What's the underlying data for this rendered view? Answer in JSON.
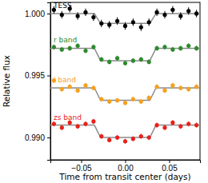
{
  "chart_data": {
    "type": "scatter",
    "x_label": "Time from transit center (days)",
    "y_label": "Relative flux",
    "xlim": [
      -0.085,
      0.085
    ],
    "ylim": [
      0.9882,
      1.0009
    ],
    "xticks": [
      {
        "value": -0.05,
        "label": "−0.05"
      },
      {
        "value": 0,
        "label": "0.00"
      },
      {
        "value": 0.05,
        "label": "0.05"
      }
    ],
    "yticks": [
      {
        "value": 0.99,
        "label": "0.990"
      },
      {
        "value": 0.995,
        "label": "0.995"
      },
      {
        "value": 1,
        "label": "1.000"
      }
    ],
    "x": [
      -0.081,
      -0.072,
      -0.063,
      -0.054,
      -0.045,
      -0.036,
      -0.027,
      -0.018,
      -0.009,
      0,
      0.009,
      0.018,
      0.027,
      0.036,
      0.045,
      0.054,
      0.063,
      0.072,
      0.081
    ],
    "model_x": [
      -0.085,
      -0.035,
      -0.028,
      0.028,
      0.035,
      0.085
    ],
    "series": [
      {
        "name": "TESS",
        "color": "#000000",
        "marker": "circle",
        "values": [
          1.0003,
          0.9999,
          1.0004,
          0.9998,
          1.0001,
          0.9997,
          0.9992,
          0.9991,
          0.9994,
          0.999,
          0.9993,
          0.9989,
          0.9993,
          1.0001,
          0.9999,
          1.0003,
          0.9998,
          1.0002,
          1.0
        ],
        "errors": [
          0.0003,
          0.0003,
          0.0003,
          0.0003,
          0.0003,
          0.0003,
          0.0003,
          0.0003,
          0.0003,
          0.0003,
          0.0003,
          0.0003,
          0.0003,
          0.0003,
          0.0003,
          0.0003,
          0.0003,
          0.0003,
          0.0003
        ],
        "model": [
          1.0,
          1.0,
          0.9992,
          0.9992,
          1.0,
          1.0
        ]
      },
      {
        "name": "r band",
        "color": "#2e8b2e",
        "marker": "circle",
        "values": [
          0.9973,
          0.9971,
          0.9972,
          0.9974,
          0.997,
          0.9973,
          0.9963,
          0.9961,
          0.9964,
          0.996,
          0.9962,
          0.9963,
          0.9961,
          0.9972,
          0.9973,
          0.9971,
          0.9972,
          0.9974,
          0.9972
        ],
        "errors": [
          0.0002,
          0.0002,
          0.0002,
          0.0002,
          0.0002,
          0.0002,
          0.0002,
          0.0002,
          0.0002,
          0.0002,
          0.0002,
          0.0002,
          0.0002,
          0.0002,
          0.0002,
          0.0002,
          0.0002,
          0.0002,
          0.0002
        ],
        "model": [
          0.9972,
          0.9972,
          0.9962,
          0.9962,
          0.9972,
          0.9972
        ]
      },
      {
        "name": "i band",
        "color": "#f5a01e",
        "marker": "circle",
        "values": [
          0.9946,
          0.9939,
          0.9941,
          0.9938,
          0.9942,
          0.994,
          0.9931,
          0.9929,
          0.993,
          0.9928,
          0.9931,
          0.9929,
          0.9932,
          0.9941,
          0.9938,
          0.9942,
          0.994,
          0.9939,
          0.9941
        ],
        "errors": [
          0.0002,
          0.0002,
          0.0002,
          0.0002,
          0.0002,
          0.0002,
          0.0002,
          0.0002,
          0.0002,
          0.0002,
          0.0002,
          0.0002,
          0.0002,
          0.0002,
          0.0002,
          0.0002,
          0.0002,
          0.0002,
          0.0002
        ],
        "model": [
          0.994,
          0.994,
          0.993,
          0.993,
          0.994,
          0.994
        ]
      },
      {
        "name": "zs band",
        "color": "#e8211a",
        "marker": "circle",
        "values": [
          0.9911,
          0.9908,
          0.9912,
          0.9909,
          0.9911,
          0.9913,
          0.9901,
          0.9898,
          0.99,
          0.9897,
          0.9899,
          0.9901,
          0.99,
          0.991,
          0.9908,
          0.9912,
          0.9909,
          0.9911,
          0.991
        ],
        "errors": [
          0.0002,
          0.0002,
          0.0002,
          0.0002,
          0.0002,
          0.0002,
          0.0002,
          0.0002,
          0.0002,
          0.0002,
          0.0002,
          0.0002,
          0.0002,
          0.0002,
          0.0002,
          0.0002,
          0.0002,
          0.0002,
          0.0002
        ],
        "model": [
          0.991,
          0.991,
          0.99,
          0.99,
          0.991,
          0.991
        ]
      }
    ]
  }
}
